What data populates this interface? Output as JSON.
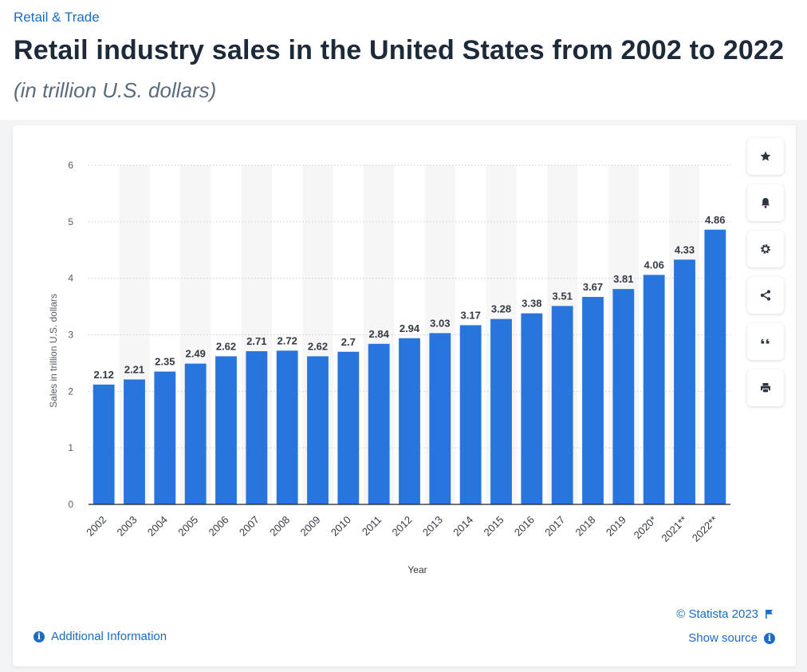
{
  "breadcrumb": "Retail & Trade",
  "title": "Retail industry sales in the United States from 2002 to 2022",
  "subtitle": "(in trillion U.S. dollars)",
  "toolbar": [
    {
      "name": "favorite-button",
      "icon": "star-icon"
    },
    {
      "name": "notification-button",
      "icon": "bell-icon"
    },
    {
      "name": "settings-button",
      "icon": "gear-icon"
    },
    {
      "name": "share-button",
      "icon": "share-icon"
    },
    {
      "name": "cite-button",
      "icon": "quote-icon"
    },
    {
      "name": "print-button",
      "icon": "print-icon"
    }
  ],
  "footer": {
    "additional_info": "Additional Information",
    "copyright": "© Statista 2023",
    "show_source": "Show source"
  },
  "colors": {
    "bar": "#2876dd",
    "accent": "#1b6cc6",
    "title": "#1d2a3a"
  },
  "chart_data": {
    "type": "bar",
    "categories": [
      "2002",
      "2003",
      "2004",
      "2005",
      "2006",
      "2007",
      "2008",
      "2009",
      "2010",
      "2011",
      "2012",
      "2013",
      "2014",
      "2015",
      "2016",
      "2017",
      "2018",
      "2019",
      "2020*",
      "2021**",
      "2022**"
    ],
    "values": [
      2.12,
      2.21,
      2.35,
      2.49,
      2.62,
      2.71,
      2.72,
      2.62,
      2.7,
      2.84,
      2.94,
      3.03,
      3.17,
      3.28,
      3.38,
      3.51,
      3.67,
      3.81,
      4.06,
      4.33,
      4.86
    ],
    "value_labels": [
      "2.12",
      "2.21",
      "2.35",
      "2.49",
      "2.62",
      "2.71",
      "2.72",
      "2.62",
      "2.7",
      "2.84",
      "2.94",
      "3.03",
      "3.17",
      "3.28",
      "3.38",
      "3.51",
      "3.67",
      "3.81",
      "4.06",
      "4.33",
      "4.86"
    ],
    "xlabel": "Year",
    "ylabel": "Sales in trillion U.S. dollars",
    "ylim": [
      0,
      6
    ],
    "yticks": [
      0,
      1,
      2,
      3,
      4,
      5,
      6
    ],
    "grid": true
  }
}
